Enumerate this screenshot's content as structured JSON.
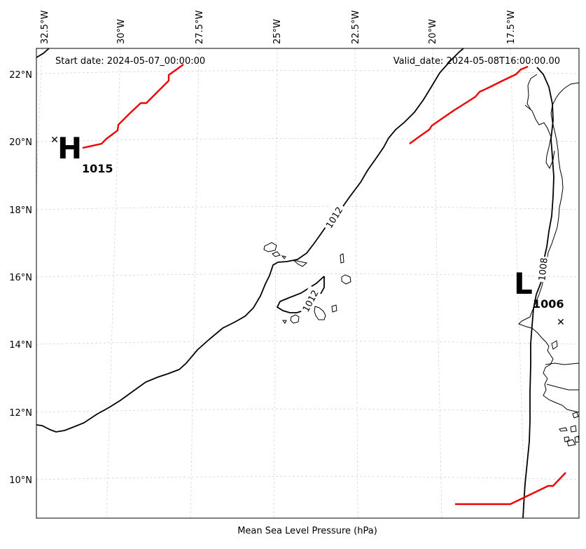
{
  "header": {
    "start_date": "Start date: 2024-05-07_00:00:00",
    "valid_date": "Valid_date: 2024-05-08T16:00:00.00"
  },
  "xlabel": "Mean Sea Level Pressure (hPa)",
  "lon_ticks": [
    "32.5°W",
    "30°W",
    "27.5°W",
    "25°W",
    "22.5°W",
    "20°W",
    "17.5°W"
  ],
  "lat_ticks": [
    "22°N",
    "20°N",
    "18°N",
    "16°N",
    "14°N",
    "12°N",
    "10°N"
  ],
  "isobars": [
    {
      "label": "1012"
    },
    {
      "label": "1012"
    },
    {
      "label": "1008"
    }
  ],
  "pressure_centers": [
    {
      "type": "H",
      "value": "1015"
    },
    {
      "type": "L",
      "value": "1006"
    }
  ],
  "colors": {
    "isobar": "#000000",
    "front": "#ee0000",
    "grid": "#cccccc",
    "coast": "#000000"
  }
}
